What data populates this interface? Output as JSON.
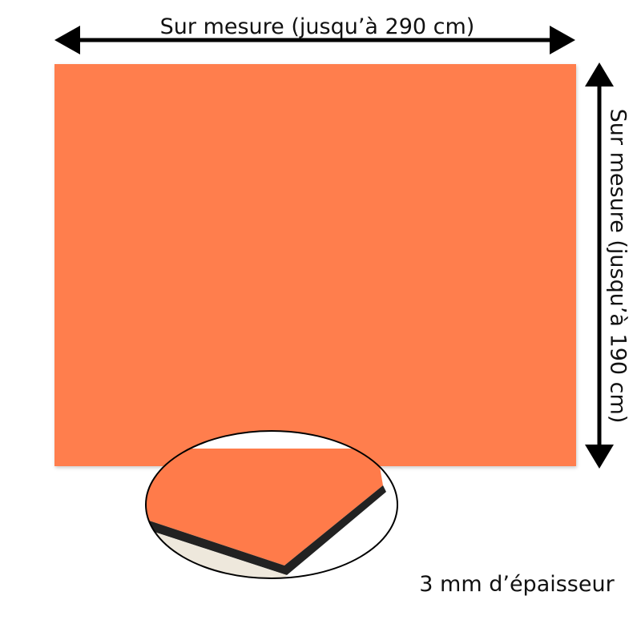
{
  "width_label": "Sur mesure (jusqu’à 290 cm)",
  "height_label": "Sur mesure (jusqu’à 190 cm)",
  "thickness_label": "3 mm d’épaisseur"
}
